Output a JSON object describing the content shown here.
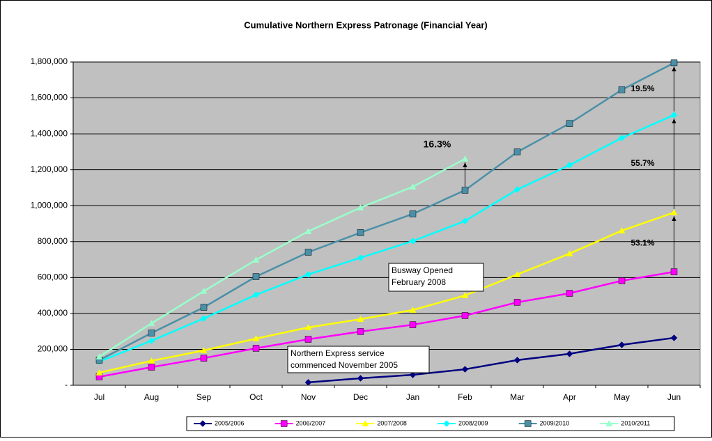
{
  "chart_data": {
    "type": "line",
    "title": "Cumulative Northern Express Patronage (Financial Year)",
    "categories": [
      "Jul",
      "Aug",
      "Sep",
      "Oct",
      "Nov",
      "Dec",
      "Jan",
      "Feb",
      "Mar",
      "Apr",
      "May",
      "Jun"
    ],
    "series": [
      {
        "name": "2005/2006",
        "color": "#000080",
        "marker": "diamond",
        "values": [
          null,
          null,
          null,
          null,
          16000,
          39000,
          58000,
          89000,
          140000,
          175000,
          225000,
          264000
        ]
      },
      {
        "name": "2006/2007",
        "color": "#ff00ff",
        "marker": "square",
        "values": [
          47000,
          101000,
          151000,
          206000,
          256000,
          299000,
          337000,
          388000,
          462000,
          512000,
          582000,
          632000
        ]
      },
      {
        "name": "2007/2008",
        "color": "#ffff00",
        "marker": "triangle",
        "values": [
          70000,
          136000,
          194000,
          260000,
          322000,
          368000,
          419000,
          500000,
          617000,
          733000,
          861000,
          962000
        ]
      },
      {
        "name": "2008/2009",
        "color": "#00ffff",
        "marker": "diamond",
        "values": [
          132000,
          248000,
          372000,
          504000,
          617000,
          710000,
          803000,
          915000,
          1090000,
          1226000,
          1377000,
          1505000
        ]
      },
      {
        "name": "2009/2010",
        "color": "#4a90a8",
        "marker": "square",
        "values": [
          140000,
          291000,
          434000,
          605000,
          741000,
          850000,
          954000,
          1086000,
          1299000,
          1458000,
          1645000,
          1795000
        ]
      },
      {
        "name": "2010/2011",
        "color": "#99ffcc",
        "marker": "triangle",
        "values": [
          159000,
          345000,
          524000,
          698000,
          857000,
          989000,
          1105000,
          1261000,
          null,
          null,
          null,
          null
        ]
      }
    ],
    "ylim": [
      0,
      1800000
    ],
    "yticks": [
      {
        "value": 0,
        "label": "-"
      },
      {
        "value": 200000,
        "label": "200,000"
      },
      {
        "value": 400000,
        "label": "400,000"
      },
      {
        "value": 600000,
        "label": "600,000"
      },
      {
        "value": 800000,
        "label": "800,000"
      },
      {
        "value": 1000000,
        "label": "1,000,000"
      },
      {
        "value": 1200000,
        "label": "1,200,000"
      },
      {
        "value": 1400000,
        "label": "1,400,000"
      },
      {
        "value": 1600000,
        "label": "1,600,000"
      },
      {
        "value": 1800000,
        "label": "1,800,000"
      }
    ],
    "grid": true,
    "legend": "bottom",
    "annotations": [
      "16.3%",
      "19.5%",
      "55.7%",
      "53.1%"
    ],
    "notes": [
      [
        "Busway Opened",
        "February 2008"
      ],
      [
        "Northern Express service",
        "commenced November 2005"
      ]
    ]
  }
}
